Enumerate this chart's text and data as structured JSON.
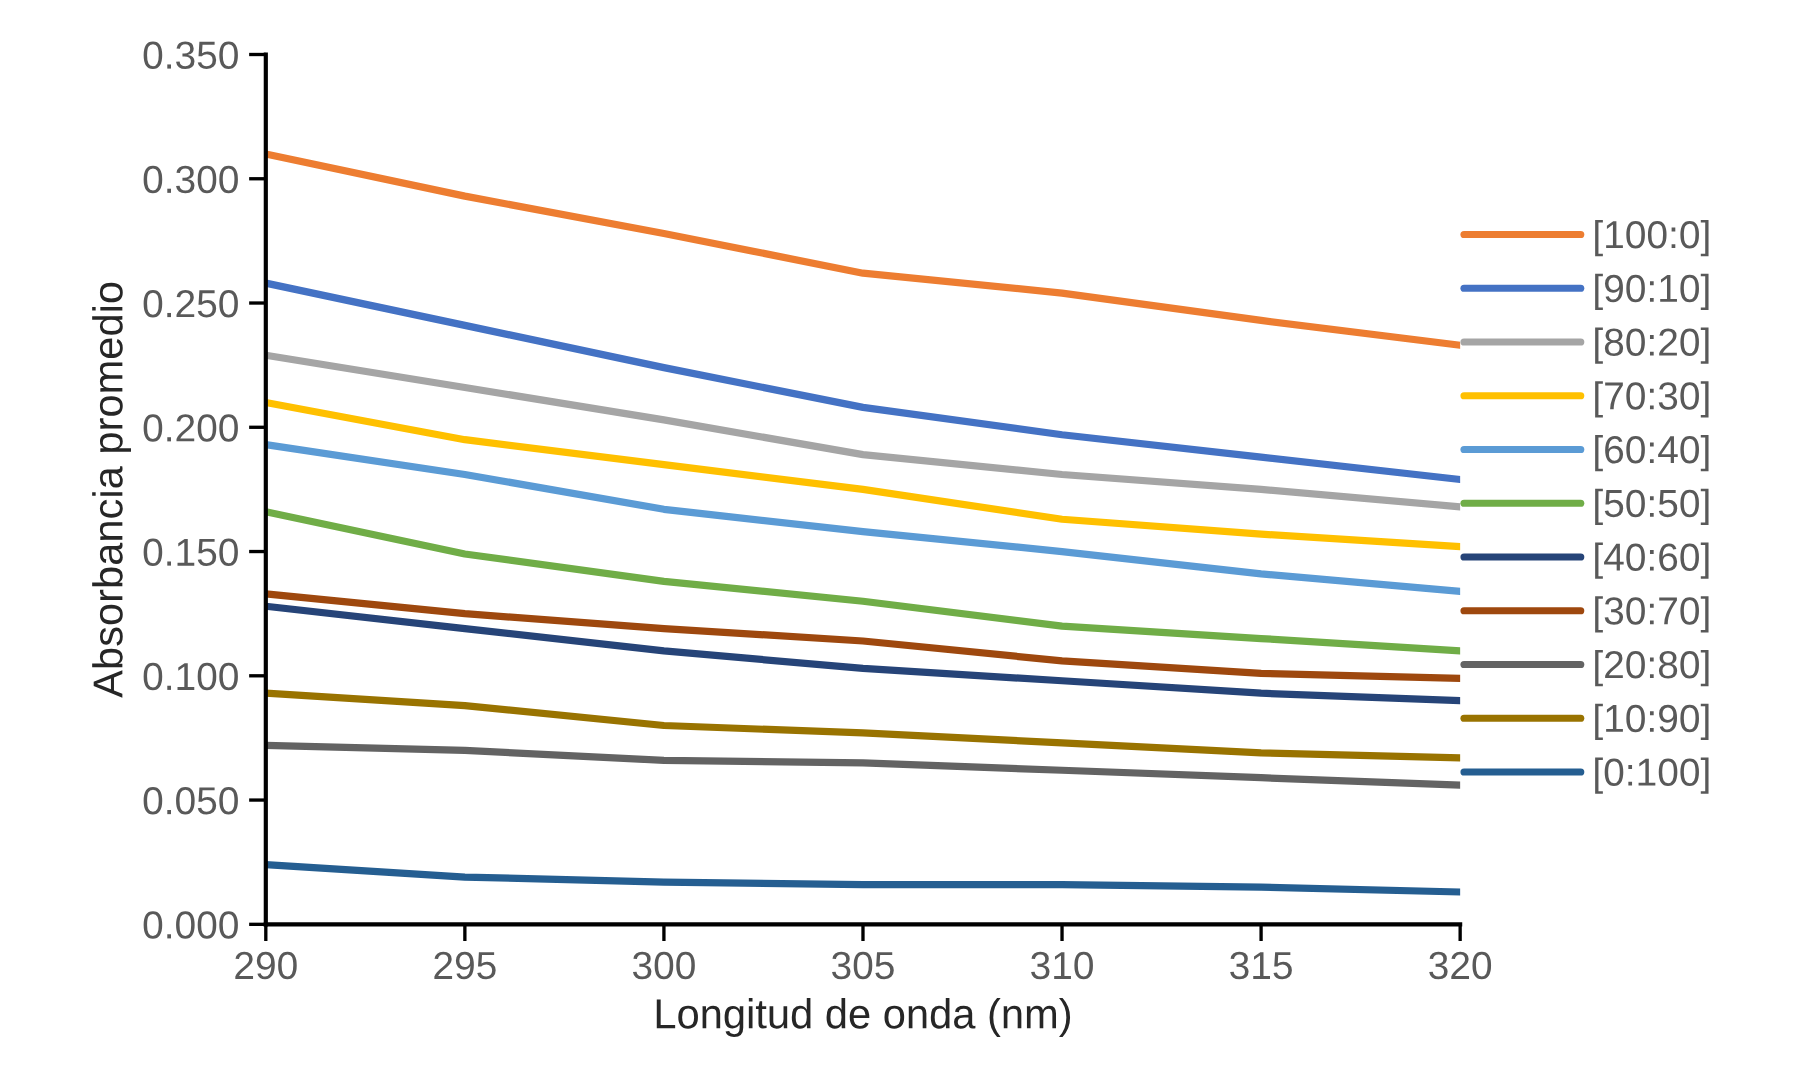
{
  "chart_data": {
    "type": "line",
    "xlabel": "Longitud de onda (nm)",
    "ylabel": "Absorbancia promedio",
    "x": [
      290,
      295,
      300,
      305,
      310,
      315,
      320
    ],
    "xlim": [
      290,
      320
    ],
    "xticks": [
      290,
      295,
      300,
      305,
      310,
      315,
      320
    ],
    "ylim": [
      0,
      0.35
    ],
    "yticks": [
      {
        "value": 0,
        "label": "0.000"
      },
      {
        "value": 0.05,
        "label": "0.050"
      },
      {
        "value": 0.1,
        "label": "0.100"
      },
      {
        "value": 0.15,
        "label": "0.150"
      },
      {
        "value": 0.2,
        "label": "0.200"
      },
      {
        "value": 0.25,
        "label": "0.250"
      },
      {
        "value": 0.3,
        "label": "0.300"
      },
      {
        "value": 0.35,
        "label": "0.350"
      }
    ],
    "grid": false,
    "legend": "right",
    "marker": "none",
    "line_style": "solid",
    "series": [
      {
        "name": "[100:0]",
        "color": "#ed7d31",
        "values": [
          0.31,
          0.293,
          0.278,
          0.262,
          0.254,
          0.243,
          0.233
        ]
      },
      {
        "name": "[90:10]",
        "color": "#4472c4",
        "values": [
          0.258,
          0.241,
          0.224,
          0.208,
          0.197,
          0.188,
          0.179
        ]
      },
      {
        "name": "[80:20]",
        "color": "#a5a5a5",
        "values": [
          0.229,
          0.216,
          0.203,
          0.189,
          0.181,
          0.175,
          0.168
        ]
      },
      {
        "name": "[70:30]",
        "color": "#ffc000",
        "values": [
          0.21,
          0.195,
          0.185,
          0.175,
          0.163,
          0.157,
          0.152
        ]
      },
      {
        "name": "[60:40]",
        "color": "#5b9bd5",
        "values": [
          0.193,
          0.181,
          0.167,
          0.158,
          0.15,
          0.141,
          0.134
        ]
      },
      {
        "name": "[50:50]",
        "color": "#70ad47",
        "values": [
          0.166,
          0.149,
          0.138,
          0.13,
          0.12,
          0.115,
          0.11
        ]
      },
      {
        "name": "[40:60]",
        "color": "#264478",
        "values": [
          0.128,
          0.119,
          0.11,
          0.103,
          0.098,
          0.093,
          0.09
        ]
      },
      {
        "name": "[30:70]",
        "color": "#9e480e",
        "values": [
          0.133,
          0.125,
          0.119,
          0.114,
          0.106,
          0.101,
          0.099
        ]
      },
      {
        "name": "[20:80]",
        "color": "#636363",
        "values": [
          0.072,
          0.07,
          0.066,
          0.065,
          0.062,
          0.059,
          0.056
        ]
      },
      {
        "name": "[10:90]",
        "color": "#997300",
        "values": [
          0.093,
          0.088,
          0.08,
          0.077,
          0.073,
          0.069,
          0.067
        ]
      },
      {
        "name": "[0:100]",
        "color": "#255e91",
        "values": [
          0.024,
          0.019,
          0.017,
          0.016,
          0.016,
          0.015,
          0.013
        ]
      }
    ]
  }
}
